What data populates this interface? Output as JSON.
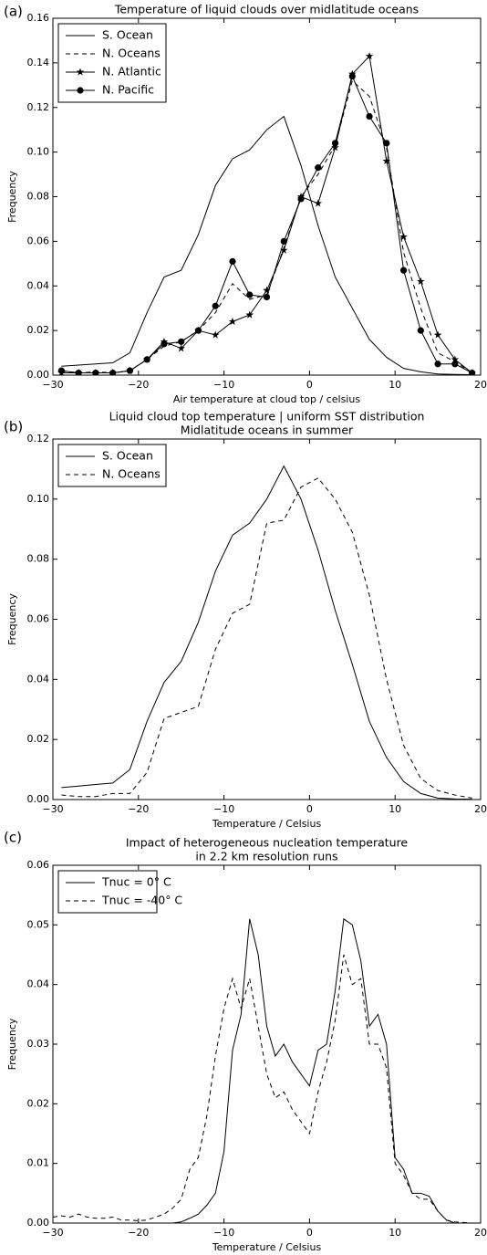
{
  "chart_data": [
    {
      "type": "line",
      "label": "(a)",
      "title": "Temperature of liquid clouds over midlatitude oceans",
      "x_label": "Air temperature at cloud top / celsius",
      "y_label": "Frequency",
      "x": [
        -29,
        -27,
        -25,
        -23,
        -21,
        -19,
        -17,
        -15,
        -13,
        -11,
        -9,
        -7,
        -5,
        -3,
        -1,
        1,
        3,
        5,
        7,
        9,
        11,
        13,
        15,
        17,
        19
      ],
      "series": [
        {
          "name": "S. Ocean",
          "color": "#000000",
          "dash": false,
          "marker": null,
          "values": [
            0.004,
            0.0045,
            0.005,
            0.0055,
            0.01,
            0.028,
            0.044,
            0.047,
            0.063,
            0.085,
            0.097,
            0.101,
            0.11,
            0.116,
            0.094,
            0.067,
            0.044,
            0.03,
            0.016,
            0.008,
            0.003,
            0.0015,
            0.0005,
            0.0003,
            0.0002
          ]
        },
        {
          "name": "N. Oceans",
          "color": "#000000",
          "dash": true,
          "marker": null,
          "values": [
            0.002,
            0.001,
            0.0015,
            0.001,
            0.002,
            0.007,
            0.013,
            0.015,
            0.02,
            0.028,
            0.041,
            0.034,
            0.036,
            0.057,
            0.08,
            0.09,
            0.103,
            0.132,
            0.125,
            0.102,
            0.055,
            0.03,
            0.01,
            0.006,
            0.001
          ]
        },
        {
          "name": "N. Atlantic",
          "color": "#000000",
          "dash": false,
          "marker": "star",
          "values": [
            0.001,
            0.001,
            0.001,
            0.001,
            0.002,
            0.007,
            0.015,
            0.012,
            0.02,
            0.018,
            0.024,
            0.027,
            0.038,
            0.056,
            0.08,
            0.077,
            0.102,
            0.135,
            0.143,
            0.096,
            0.062,
            0.042,
            0.018,
            0.007,
            0.001
          ]
        },
        {
          "name": "N. Pacific",
          "color": "#000000",
          "dash": false,
          "marker": "circle",
          "values": [
            0.002,
            0.001,
            0.001,
            0.001,
            0.002,
            0.007,
            0.014,
            0.015,
            0.02,
            0.031,
            0.051,
            0.036,
            0.035,
            0.06,
            0.079,
            0.093,
            0.104,
            0.134,
            0.116,
            0.104,
            0.047,
            0.02,
            0.005,
            0.005,
            0.001
          ]
        }
      ],
      "xlim": [
        -30,
        20
      ],
      "xticks": [
        {
          "value": -30,
          "label": "−30"
        },
        {
          "value": -20,
          "label": "−20"
        },
        {
          "value": -10,
          "label": "−10"
        },
        0,
        10,
        20
      ],
      "ylim": [
        0,
        0.16
      ],
      "yticks": [
        {
          "value": 0,
          "label": "0.00"
        },
        {
          "value": 0.02,
          "label": "0.02"
        },
        {
          "value": 0.04,
          "label": "0.04"
        },
        {
          "value": 0.06,
          "label": "0.06"
        },
        {
          "value": 0.08,
          "label": "0.08"
        },
        {
          "value": 0.1,
          "label": "0.10"
        },
        {
          "value": 0.12,
          "label": "0.12"
        },
        {
          "value": 0.14,
          "label": "0.14"
        },
        {
          "value": 0.16,
          "label": "0.16"
        }
      ],
      "legend": "upper left",
      "grid": false
    },
    {
      "type": "line",
      "label": "(b)",
      "title": "Liquid cloud top temperature | uniform SST distribution",
      "subtitle": "Midlatitude oceans in summer",
      "x_label": "Temperature / Celsius",
      "y_label": "Frequency",
      "x": [
        -29,
        -27,
        -25,
        -23,
        -21,
        -19,
        -17,
        -15,
        -13,
        -11,
        -9,
        -7,
        -5,
        -3,
        -1,
        1,
        3,
        5,
        7,
        9,
        11,
        13,
        15,
        17,
        19
      ],
      "series": [
        {
          "name": "S. Ocean",
          "color": "#000000",
          "dash": false,
          "marker": null,
          "values": [
            0.004,
            0.0045,
            0.005,
            0.0055,
            0.01,
            0.026,
            0.039,
            0.046,
            0.059,
            0.076,
            0.088,
            0.092,
            0.1,
            0.111,
            0.1,
            0.083,
            0.063,
            0.045,
            0.026,
            0.014,
            0.006,
            0.002,
            0.0005,
            0.0002,
            0.0001
          ]
        },
        {
          "name": "N. Oceans",
          "color": "#000000",
          "dash": true,
          "marker": null,
          "values": [
            0.0015,
            0.001,
            0.001,
            0.002,
            0.002,
            0.009,
            0.027,
            0.029,
            0.031,
            0.05,
            0.062,
            0.065,
            0.092,
            0.093,
            0.104,
            0.107,
            0.1,
            0.089,
            0.068,
            0.04,
            0.018,
            0.007,
            0.003,
            0.0015,
            0.0005
          ]
        }
      ],
      "xlim": [
        -30,
        20
      ],
      "xticks": [
        {
          "value": -30,
          "label": "−30"
        },
        {
          "value": -20,
          "label": "−20"
        },
        {
          "value": -10,
          "label": "−10"
        },
        0,
        10,
        20
      ],
      "ylim": [
        0,
        0.12
      ],
      "yticks": [
        {
          "value": 0,
          "label": "0.00"
        },
        {
          "value": 0.02,
          "label": "0.02"
        },
        {
          "value": 0.04,
          "label": "0.04"
        },
        {
          "value": 0.06,
          "label": "0.06"
        },
        {
          "value": 0.08,
          "label": "0.08"
        },
        {
          "value": 0.1,
          "label": "0.10"
        },
        {
          "value": 0.12,
          "label": "0.12"
        }
      ],
      "legend": "upper left",
      "grid": false
    },
    {
      "type": "line",
      "label": "(c)",
      "title": "Impact of heterogeneous nucleation temperature",
      "subtitle": "in 2.2 km resolution runs",
      "x_label": "Temperature / Celsius",
      "y_label": "Frequency",
      "x": [
        -30,
        -29,
        -28,
        -27,
        -26,
        -25,
        -24,
        -23,
        -22,
        -21,
        -20,
        -19,
        -18,
        -17,
        -16,
        -15,
        -14,
        -13,
        -12,
        -11,
        -10,
        -9,
        -8,
        -7,
        -6,
        -5,
        -4,
        -3,
        -2,
        -1,
        0,
        1,
        2,
        3,
        4,
        5,
        6,
        7,
        8,
        9,
        10,
        11,
        12,
        13,
        14,
        15,
        16,
        17,
        18,
        19,
        20
      ],
      "series": [
        {
          "name": "Tnuc = 0° C",
          "color": "#000000",
          "dash": false,
          "marker": null,
          "values": [
            0,
            0,
            0,
            0,
            0,
            0,
            0,
            0,
            0,
            0,
            0,
            0,
            0,
            0,
            0,
            0.0002,
            0.0008,
            0.0015,
            0.003,
            0.005,
            0.012,
            0.029,
            0.035,
            0.051,
            0.045,
            0.033,
            0.028,
            0.03,
            0.027,
            0.025,
            0.023,
            0.029,
            0.03,
            0.039,
            0.051,
            0.05,
            0.044,
            0.033,
            0.035,
            0.03,
            0.011,
            0.009,
            0.005,
            0.005,
            0.0045,
            0.002,
            0.0005,
            0,
            0,
            0,
            0
          ]
        },
        {
          "name": "Tnuc = -40° C",
          "color": "#000000",
          "dash": true,
          "marker": null,
          "values": [
            0.001,
            0.0012,
            0.001,
            0.0015,
            0.001,
            0.0008,
            0.0008,
            0.001,
            0.0005,
            0.0005,
            0.0004,
            0.0005,
            0.001,
            0.0015,
            0.0025,
            0.004,
            0.009,
            0.011,
            0.018,
            0.028,
            0.036,
            0.041,
            0.036,
            0.041,
            0.033,
            0.025,
            0.021,
            0.022,
            0.019,
            0.017,
            0.015,
            0.022,
            0.027,
            0.034,
            0.045,
            0.04,
            0.041,
            0.03,
            0.03,
            0.026,
            0.01,
            0.008,
            0.005,
            0.004,
            0.004,
            0.002,
            0.0005,
            0.0002,
            0.0001,
            0,
            0
          ]
        }
      ],
      "xlim": [
        -30,
        20
      ],
      "xticks": [
        {
          "value": -30,
          "label": "−30"
        },
        {
          "value": -20,
          "label": "−20"
        },
        {
          "value": -10,
          "label": "−10"
        },
        0,
        10,
        20
      ],
      "ylim": [
        0,
        0.06
      ],
      "yticks": [
        {
          "value": 0,
          "label": "0.00"
        },
        {
          "value": 0.01,
          "label": "0.01"
        },
        {
          "value": 0.02,
          "label": "0.02"
        },
        {
          "value": 0.03,
          "label": "0.03"
        },
        {
          "value": 0.04,
          "label": "0.04"
        },
        {
          "value": 0.05,
          "label": "0.05"
        },
        {
          "value": 0.06,
          "label": "0.06"
        }
      ],
      "legend": "upper left",
      "grid": false
    }
  ]
}
